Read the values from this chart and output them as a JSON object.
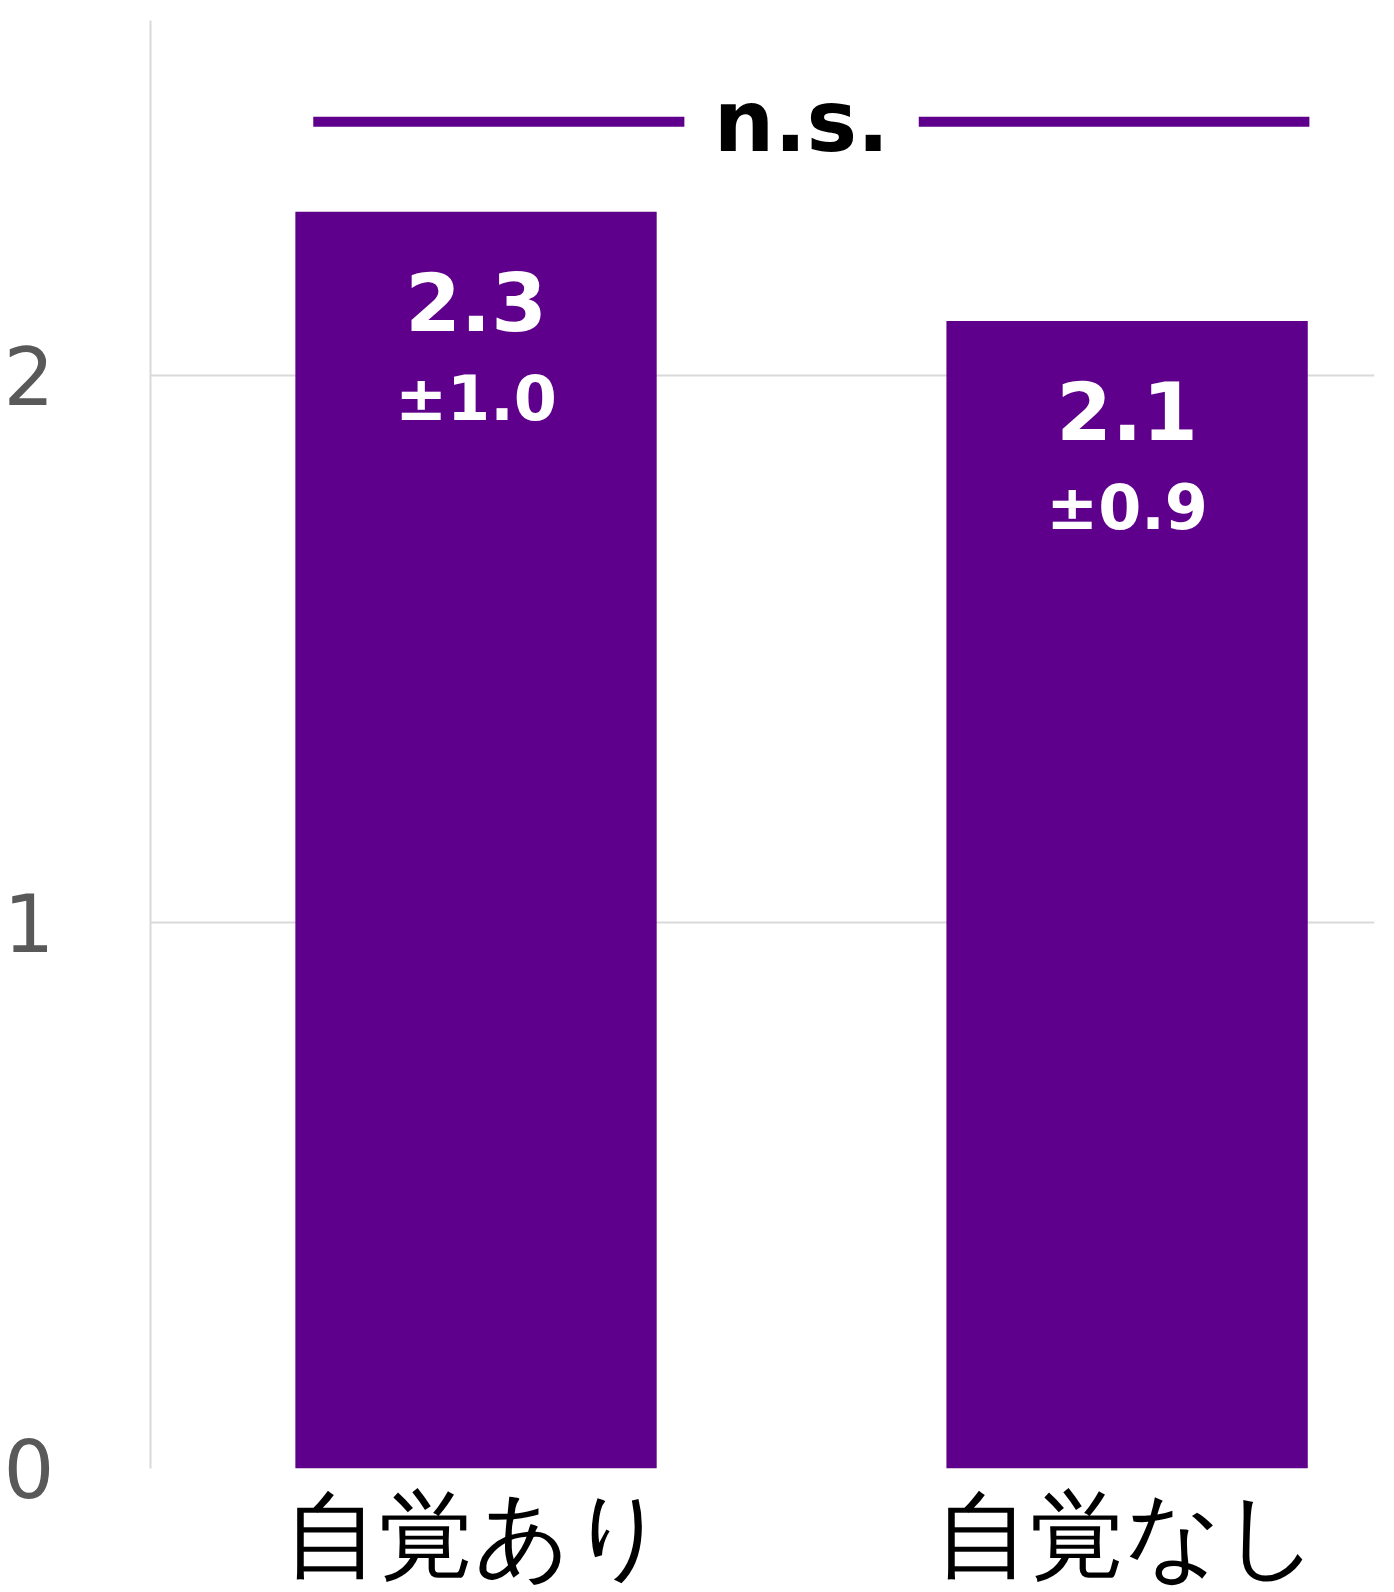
{
  "chart_data": {
    "type": "bar",
    "categories": [
      "自覚あり",
      "自覚なし"
    ],
    "values": [
      2.3,
      2.1
    ],
    "color": "#5f008c",
    "value_labels": [
      "2.3\n±1.0",
      "2.1\n±0.9"
    ],
    "ylim": [
      0,
      2.65
    ],
    "yticks": [
      0,
      1,
      2
    ],
    "grid": "y",
    "annotations": [
      "n.s."
    ]
  }
}
